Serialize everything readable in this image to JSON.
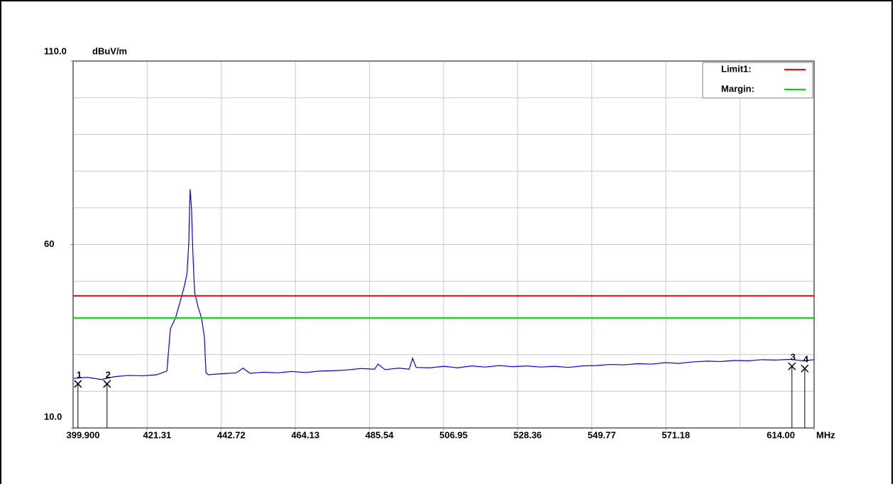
{
  "chart_data": {
    "type": "line",
    "y_unit": "dBuV/m",
    "x_unit": "MHz",
    "xlim": [
      399.9,
      614
    ],
    "ylim": [
      10,
      110
    ],
    "xticks": [
      {
        "value": 399.9,
        "label": "399.900"
      },
      421.31,
      442.72,
      464.13,
      485.54,
      506.95,
      528.36,
      549.77,
      571.18,
      {
        "value": 614,
        "label": "614.00"
      }
    ],
    "yticks": [
      {
        "value": 10,
        "label": "10.0"
      },
      60,
      {
        "value": 110,
        "label": "110.0"
      }
    ],
    "grid": true,
    "legend": "upper right",
    "series": [
      {
        "color": "#0000ff",
        "x": [
          400,
          404,
          408,
          412,
          416,
          420,
          424,
          427,
          428,
          429.5,
          431,
          432,
          432.8,
          433.3,
          433.7,
          434.1,
          434.5,
          435,
          436,
          437,
          437.8,
          438.3,
          439,
          443,
          447,
          449,
          451,
          455,
          459,
          463,
          467,
          471,
          475,
          479,
          483,
          487,
          488,
          490,
          494,
          497,
          498,
          499,
          503,
          507,
          511,
          515,
          519,
          523,
          527,
          531,
          535,
          539,
          543,
          547,
          551,
          555,
          559,
          563,
          567,
          571,
          575,
          579,
          583,
          587,
          591,
          595,
          599,
          603,
          607,
          611,
          614
        ],
        "values": [
          23.5,
          23.8,
          23.2,
          24.0,
          24.3,
          24.2,
          24.5,
          25.5,
          37,
          40,
          45,
          48.5,
          52,
          60,
          75,
          70,
          58,
          47,
          43,
          40,
          35,
          25,
          24.5,
          24.8,
          25.0,
          26.3,
          24.9,
          25.2,
          25.0,
          25.4,
          25.1,
          25.5,
          25.6,
          25.8,
          26.2,
          26.0,
          27.4,
          25.9,
          26.3,
          26.0,
          29.0,
          26.5,
          26.4,
          26.8,
          26.4,
          26.9,
          26.6,
          27.0,
          26.7,
          26.9,
          26.6,
          26.8,
          26.5,
          26.9,
          27.0,
          27.3,
          27.2,
          27.5,
          27.4,
          27.8,
          27.6,
          28.0,
          28.2,
          28.1,
          28.4,
          28.3,
          28.6,
          28.5,
          28.7,
          28.3,
          28.6
        ]
      },
      {
        "name": "Limit1:",
        "color": "#ff0000",
        "x": [
          399.9,
          614
        ],
        "values": [
          46,
          46
        ]
      },
      {
        "name": "Margin:",
        "color": "#00dd00",
        "x": [
          399.9,
          614
        ],
        "values": [
          40,
          40
        ]
      }
    ],
    "markers": [
      {
        "label": "1",
        "x": 401.3,
        "value": 22.0
      },
      {
        "label": "2",
        "x": 409.7,
        "value": 22.0
      },
      {
        "label": "3",
        "x": 607.6,
        "value": 26.8
      },
      {
        "label": "4",
        "x": 611.3,
        "value": 26.2
      }
    ]
  }
}
